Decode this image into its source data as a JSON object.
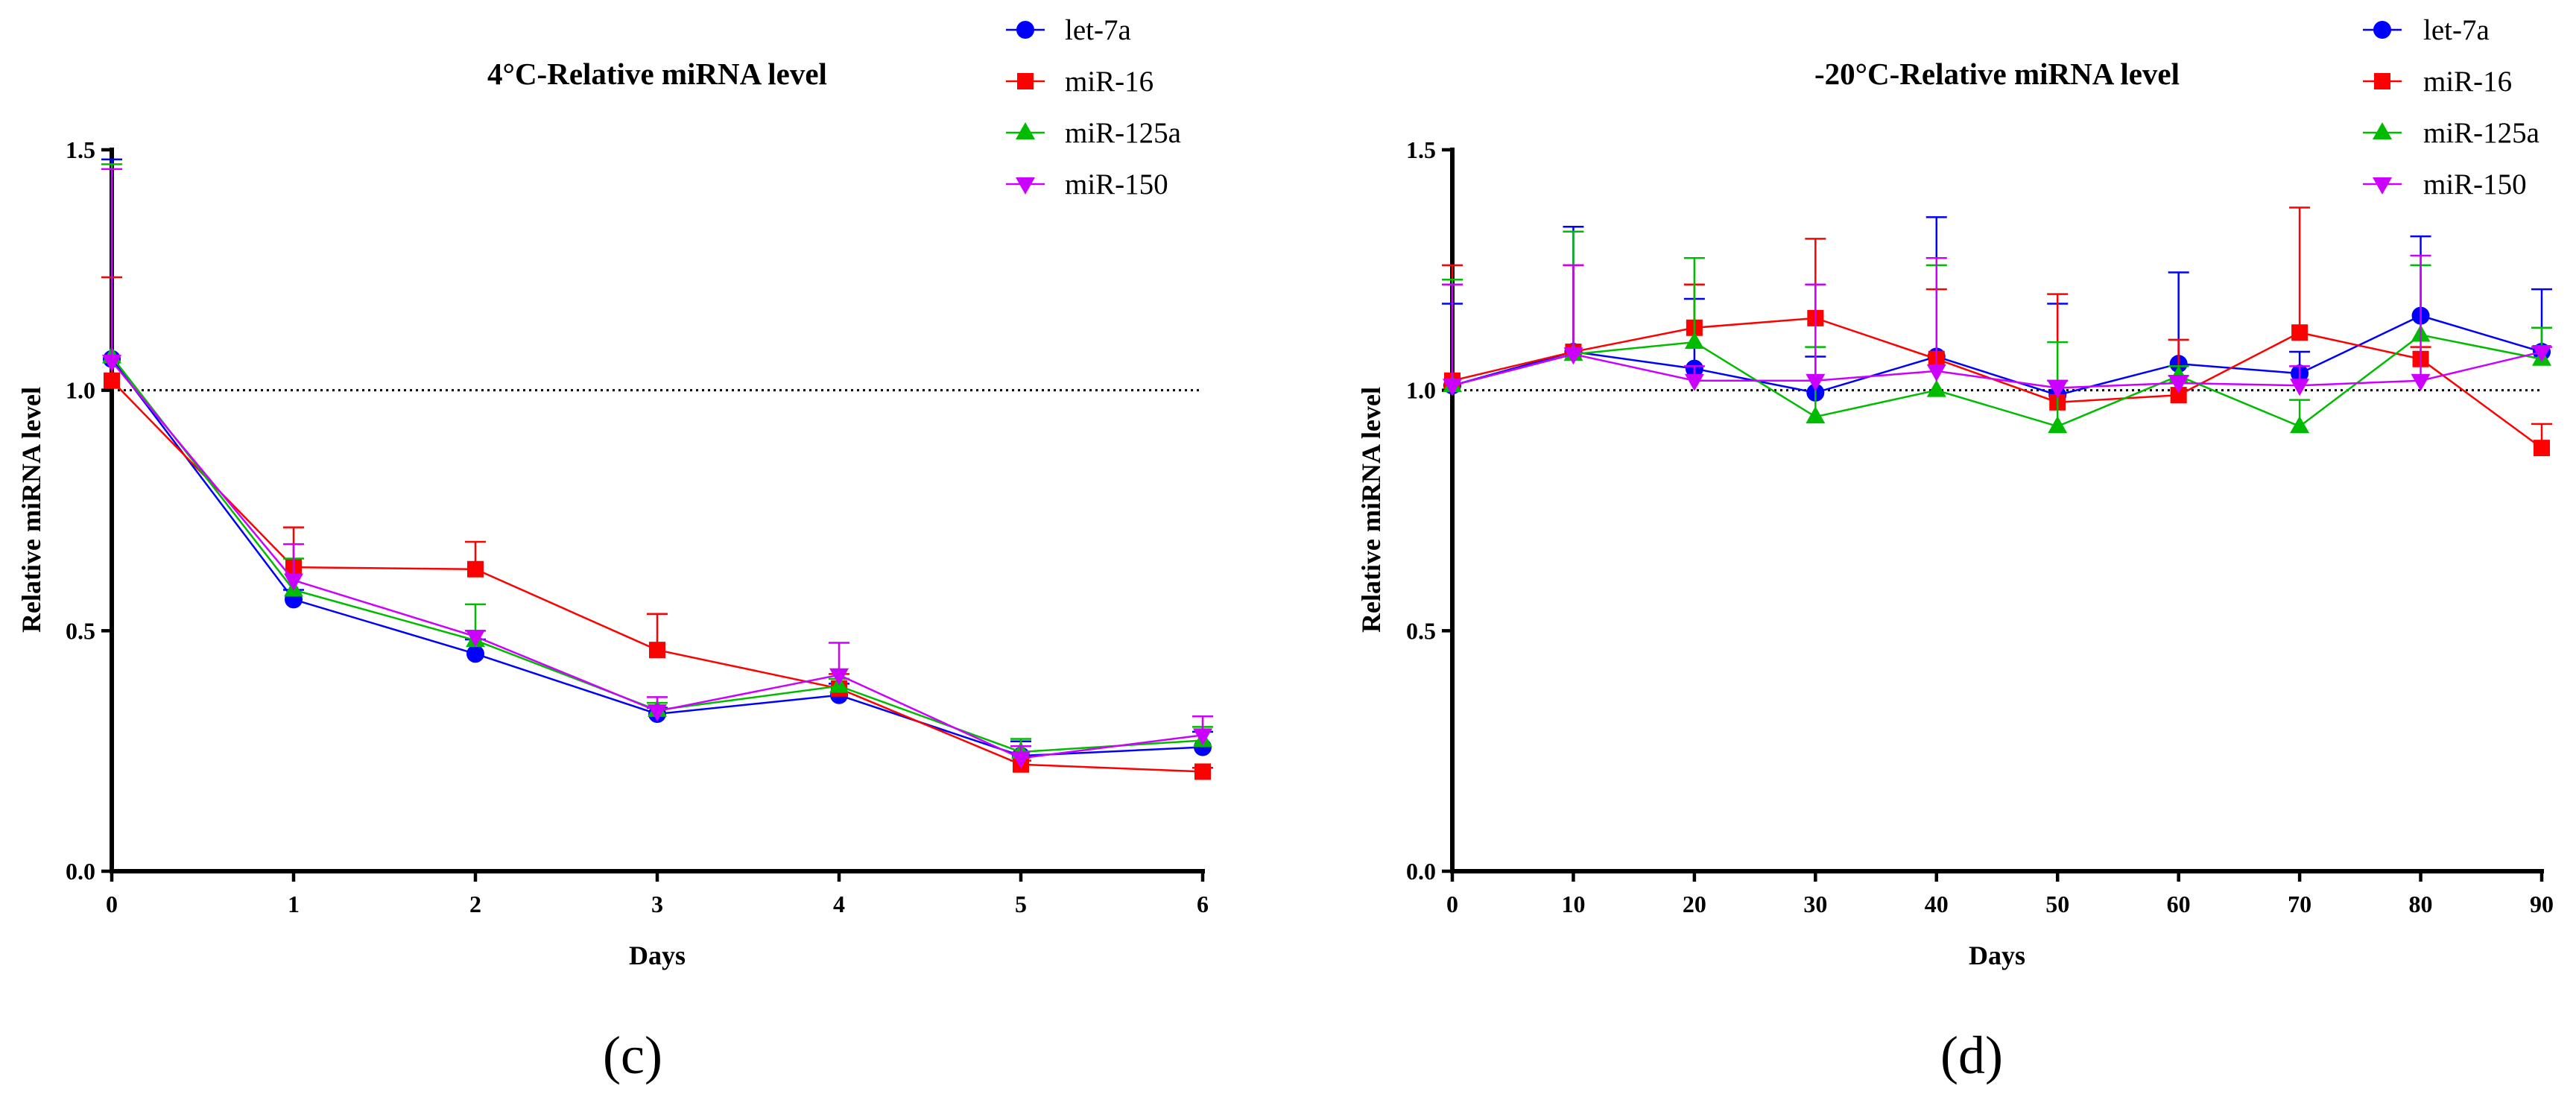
{
  "chart_data": [
    {
      "type": "line",
      "title": "4°C-Relative miRNA level",
      "xlabel": "Days",
      "ylabel": "Relative miRNA level",
      "panel_label": "(c)",
      "x": [
        0,
        1,
        2,
        3,
        4,
        5,
        6
      ],
      "xlim": [
        0,
        6
      ],
      "xticks": [
        0,
        1,
        2,
        3,
        4,
        5,
        6
      ],
      "ylim": [
        0,
        1.5
      ],
      "yticks": [
        0,
        0.5,
        1.0,
        1.5
      ],
      "ytick_labels": [
        "0.0",
        "0.5",
        "1.0",
        "1.5"
      ],
      "reference_line": 1.0,
      "grid": false,
      "legend_position": "top-right",
      "series": [
        {
          "name": "let-7a",
          "color": "#0000ff",
          "marker": "circle",
          "values": [
            1.065,
            0.565,
            0.452,
            0.327,
            0.366,
            0.24,
            0.258
          ],
          "error_upper": [
            0.415,
            0.02,
            0.03,
            0.013,
            0.024,
            0.03,
            0.032
          ]
        },
        {
          "name": "miR-16",
          "color": "#ff0000",
          "marker": "square",
          "values": [
            1.02,
            0.632,
            0.628,
            0.46,
            0.38,
            0.222,
            0.207
          ],
          "error_upper": [
            0.215,
            0.083,
            0.057,
            0.075,
            0.03,
            0.008,
            0.008
          ]
        },
        {
          "name": "miR-125a",
          "color": "#00bb00",
          "marker": "triangle-up",
          "values": [
            1.07,
            0.585,
            0.48,
            0.335,
            0.385,
            0.248,
            0.272
          ],
          "error_upper": [
            0.4,
            0.065,
            0.075,
            0.015,
            0.015,
            0.027,
            0.028
          ]
        },
        {
          "name": "miR-150",
          "color": "#cc00ff",
          "marker": "triangle-down",
          "values": [
            1.06,
            0.605,
            0.488,
            0.333,
            0.408,
            0.235,
            0.283
          ],
          "error_upper": [
            0.4,
            0.075,
            0.012,
            0.029,
            0.067,
            0.025,
            0.039
          ]
        }
      ]
    },
    {
      "type": "line",
      "title": "-20°C-Relative miRNA level",
      "xlabel": "Days",
      "ylabel": "Relative miRNA level",
      "panel_label": "(d)",
      "x": [
        0,
        10,
        20,
        30,
        40,
        50,
        60,
        70,
        80,
        90
      ],
      "xlim": [
        0,
        90
      ],
      "xticks": [
        0,
        10,
        20,
        30,
        40,
        50,
        60,
        70,
        80,
        90
      ],
      "ylim": [
        0,
        1.5
      ],
      "yticks": [
        0,
        0.5,
        1.0,
        1.5
      ],
      "ytick_labels": [
        "0.0",
        "0.5",
        "1.0",
        "1.5"
      ],
      "reference_line": 1.0,
      "grid": false,
      "legend_position": "top-right",
      "series": [
        {
          "name": "let-7a",
          "color": "#0000ff",
          "marker": "circle",
          "values": [
            1.01,
            1.08,
            1.045,
            0.995,
            1.07,
            0.99,
            1.055,
            1.035,
            1.155,
            1.08
          ],
          "error_upper": [
            0.17,
            0.26,
            0.145,
            0.075,
            0.29,
            0.19,
            0.19,
            0.045,
            0.165,
            0.13
          ]
        },
        {
          "name": "miR-16",
          "color": "#ff0000",
          "marker": "square",
          "values": [
            1.02,
            1.08,
            1.13,
            1.15,
            1.065,
            0.975,
            0.99,
            1.12,
            1.065,
            0.88
          ],
          "error_upper": [
            0.24,
            0.18,
            0.09,
            0.165,
            0.145,
            0.225,
            0.115,
            0.26,
            0.025,
            0.05
          ]
        },
        {
          "name": "miR-125a",
          "color": "#00bb00",
          "marker": "triangle-up",
          "values": [
            1.01,
            1.075,
            1.1,
            0.945,
            1.0,
            0.925,
            1.03,
            0.925,
            1.115,
            1.065
          ],
          "error_upper": [
            0.22,
            0.255,
            0.175,
            0.145,
            0.26,
            0.175,
            0.02,
            0.055,
            0.145,
            0.065
          ]
        },
        {
          "name": "miR-150",
          "color": "#cc00ff",
          "marker": "triangle-down",
          "values": [
            1.01,
            1.075,
            1.02,
            1.02,
            1.04,
            1.005,
            1.015,
            1.01,
            1.02,
            1.08
          ],
          "error_upper": [
            0.21,
            0.185,
            0.03,
            0.2,
            0.235,
            0.015,
            0.015,
            0.04,
            0.26,
            0.01
          ]
        }
      ]
    }
  ]
}
